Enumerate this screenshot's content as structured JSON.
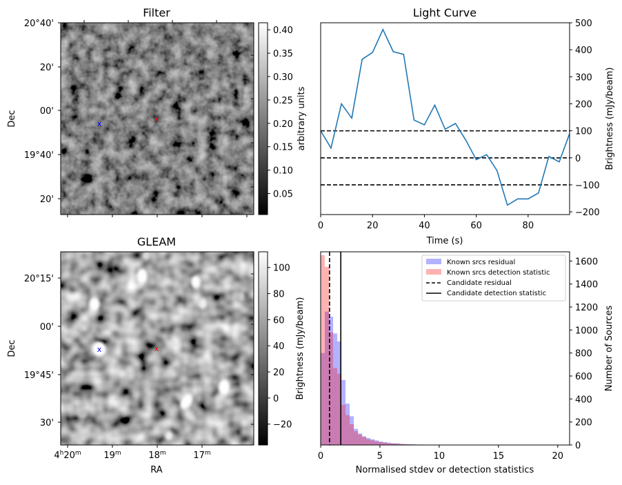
{
  "chart_data": [
    {
      "panel": "filter",
      "type": "heatmap",
      "title": "Filter",
      "ylabel": "Dec",
      "y_ticks": [
        "20°40'",
        "20'",
        "00'",
        "19°40'",
        "20'"
      ],
      "colorbar": {
        "label": "arbitrary units",
        "range": [
          0.005,
          0.415
        ],
        "ticks": [
          "0.05",
          "0.10",
          "0.15",
          "0.20",
          "0.25",
          "0.30",
          "0.35",
          "0.40"
        ],
        "tick_values": [
          0.05,
          0.1,
          0.15,
          0.2,
          0.25,
          0.3,
          0.35,
          0.4
        ]
      },
      "markers": [
        {
          "color": "#0000ff",
          "symbol": "x"
        },
        {
          "color": "#ff0000",
          "symbol": "x"
        }
      ]
    },
    {
      "panel": "light_curve",
      "type": "line",
      "title": "Light Curve",
      "xlabel": "Time (s)",
      "ylabel": "Brightness (mJy/beam)",
      "xlim": [
        0,
        96
      ],
      "ylim": [
        -210,
        500
      ],
      "x_ticks": [
        0,
        20,
        40,
        60,
        80
      ],
      "y_ticks": [
        -200,
        -100,
        0,
        100,
        200,
        300,
        400,
        500
      ],
      "series": [
        {
          "color": "#1f77b4",
          "x": [
            0,
            4,
            8,
            12,
            16,
            20,
            24,
            28,
            32,
            36,
            40,
            44,
            48,
            52,
            56,
            60,
            64,
            68,
            72,
            76,
            80,
            84,
            88,
            92,
            96
          ],
          "y": [
            100,
            36,
            200,
            147,
            365,
            390,
            475,
            393,
            383,
            140,
            122,
            195,
            106,
            127,
            65,
            -7,
            12,
            -47,
            -175,
            -152,
            -152,
            -130,
            5,
            -15,
            90
          ]
        }
      ],
      "hlines": [
        {
          "y": 100,
          "style": "dashed"
        },
        {
          "y": 0,
          "style": "dashed"
        },
        {
          "y": -100,
          "style": "dashed"
        }
      ]
    },
    {
      "panel": "gleam",
      "type": "heatmap",
      "title": "GLEAM",
      "xlabel": "RA",
      "ylabel": "Dec",
      "x_ticks": [
        {
          "h": "4",
          "hsup": "h",
          "m": "20",
          "msup": "m"
        },
        {
          "m": "19",
          "msup": "m"
        },
        {
          "m": "18",
          "msup": "m"
        },
        {
          "m": "17",
          "msup": "m"
        }
      ],
      "y_ticks": [
        "20°15'",
        "00'",
        "19°45'",
        "30'"
      ],
      "colorbar": {
        "label": "Brightness (mJy/beam)",
        "range": [
          -36,
          112
        ],
        "ticks": [
          "−20",
          "0",
          "20",
          "40",
          "60",
          "80",
          "100"
        ],
        "tick_values": [
          -20,
          0,
          20,
          40,
          60,
          80,
          100
        ]
      },
      "markers": [
        {
          "color": "#0000ff",
          "symbol": "x"
        },
        {
          "color": "#ff0000",
          "symbol": "x"
        }
      ]
    },
    {
      "panel": "histogram",
      "type": "bar",
      "xlabel": "Normalised stdev or detection statistics",
      "ylabel": "Number of Sources",
      "xlim": [
        0,
        21
      ],
      "ylim": [
        0,
        1680
      ],
      "x_ticks": [
        0,
        5,
        10,
        15,
        20
      ],
      "y_ticks": [
        0,
        200,
        400,
        600,
        800,
        1000,
        1200,
        1400,
        1600
      ],
      "bin_width": 0.35,
      "bin_start": 0,
      "series": [
        {
          "name": "Known srcs residual",
          "color": "#0000ff",
          "values": [
            800,
            1160,
            1115,
            970,
            900,
            565,
            360,
            250,
            140,
            100,
            75,
            60,
            50,
            40,
            30,
            25,
            20,
            15,
            15,
            10,
            8,
            6,
            5,
            4,
            4,
            3,
            3,
            3,
            2,
            2,
            2,
            2,
            2,
            2,
            2,
            2,
            2,
            2,
            2,
            2,
            2,
            2,
            2,
            2,
            2,
            2,
            2,
            2,
            2,
            2,
            2,
            2,
            2,
            2,
            2,
            2,
            2,
            2,
            2
          ]
        },
        {
          "name": "Known srcs detection statistic",
          "color": "#ff0000",
          "values": [
            1650,
            1550,
            980,
            670,
            620,
            350,
            260,
            180,
            120,
            90,
            70,
            50,
            40,
            30,
            25,
            20,
            15,
            12,
            10,
            8,
            6,
            5,
            4,
            3,
            3,
            2,
            2,
            2,
            2,
            2,
            2,
            2,
            2,
            2,
            2,
            2,
            2,
            2,
            2,
            2,
            2,
            2,
            2,
            2,
            2,
            2,
            2,
            2,
            2,
            2,
            2,
            2,
            2,
            2,
            2,
            2,
            2,
            2,
            2
          ]
        }
      ],
      "vlines": [
        {
          "name": "Candidate residual",
          "x": 0.75,
          "style": "dashed"
        },
        {
          "name": "Candidate detection statistic",
          "x": 1.7,
          "style": "solid"
        }
      ],
      "legend": "top-right"
    }
  ]
}
